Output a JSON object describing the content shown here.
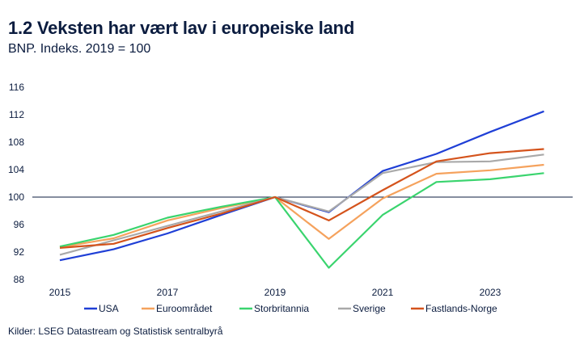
{
  "chart_data": {
    "type": "line",
    "title": "1.2 Veksten har vært lav i europeiske land",
    "subtitle": "BNP. Indeks. 2019 = 100",
    "source": "Kilder: LSEG Datastream og Statistisk sentralbyrå",
    "xlabel": "",
    "ylabel": "",
    "x": [
      2015,
      2016,
      2017,
      2018,
      2019,
      2020,
      2021,
      2022,
      2023,
      2024
    ],
    "xticks": [
      "2015",
      "2017",
      "2019",
      "2021",
      "2023"
    ],
    "xtick_values": [
      2015,
      2017,
      2019,
      2021,
      2023
    ],
    "xlim": [
      2015,
      2024.5
    ],
    "ylim": [
      88,
      116
    ],
    "yticks": [
      88,
      92,
      96,
      100,
      104,
      108,
      112,
      116
    ],
    "reference_line": 100,
    "grid": false,
    "legend_position": "bottom",
    "series": [
      {
        "name": "USA",
        "color": "#1f3fd6",
        "values": [
          90.8,
          92.4,
          94.7,
          97.4,
          100,
          97.8,
          103.8,
          106.3,
          109.5,
          112.5
        ]
      },
      {
        "name": "Euroområdet",
        "color": "#f5a25d",
        "values": [
          92.7,
          94.0,
          96.6,
          98.4,
          100,
          93.9,
          99.8,
          103.4,
          103.9,
          104.7
        ]
      },
      {
        "name": "Storbritannia",
        "color": "#3ad46e",
        "values": [
          92.8,
          94.5,
          97.0,
          98.6,
          100,
          89.7,
          97.4,
          102.2,
          102.6,
          103.5
        ]
      },
      {
        "name": "Sverige",
        "color": "#a9a9a9",
        "values": [
          91.6,
          93.7,
          95.8,
          97.9,
          100,
          97.9,
          103.5,
          105.1,
          105.2,
          106.2
        ]
      },
      {
        "name": "Fastlands-Norge",
        "color": "#d4531c",
        "values": [
          92.6,
          93.2,
          95.5,
          97.6,
          100,
          96.6,
          101.0,
          105.2,
          106.4,
          107.0
        ]
      }
    ]
  }
}
